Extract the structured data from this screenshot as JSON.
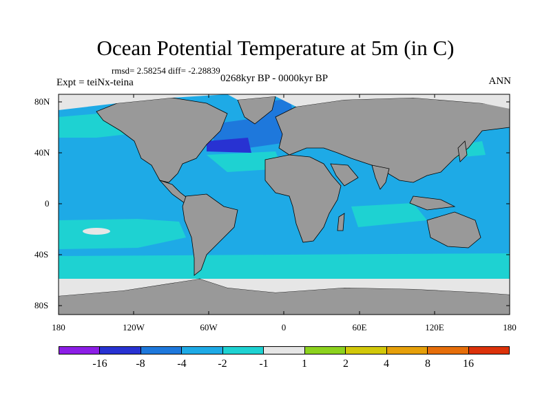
{
  "title": "Ocean Potential Temperature at 5m (in C)",
  "stats": "rmsd= 2.58254 diff= -2.28839",
  "experiment": "Expt = teiNx-teina",
  "period": "0268kyr BP - 0000kyr BP",
  "season": "ANN",
  "axes": {
    "y_ticks": [
      "80N",
      "40N",
      "0",
      "40S",
      "80S"
    ],
    "x_ticks": [
      "180",
      "120W",
      "60W",
      "0",
      "60E",
      "120E",
      "180"
    ]
  },
  "colorbar": {
    "colors": [
      "#8c1ee6",
      "#2832d2",
      "#1e78dc",
      "#1eaae6",
      "#1ed2d2",
      "#e6e6e6",
      "#8cd21e",
      "#d2c80a",
      "#e6a00a",
      "#e66e0a",
      "#dc320a"
    ],
    "labels": [
      "-16",
      "-8",
      "-4",
      "-2",
      "-1",
      "1",
      "2",
      "4",
      "8",
      "16"
    ]
  },
  "colors": {
    "land": "#999999",
    "ocean_main": "#1eaae6",
    "ocean_cool": "#1ed2d2",
    "ocean_cold": "#1e78dc",
    "ocean_coldest": "#2832d2",
    "ice": "#e6e6e6"
  }
}
